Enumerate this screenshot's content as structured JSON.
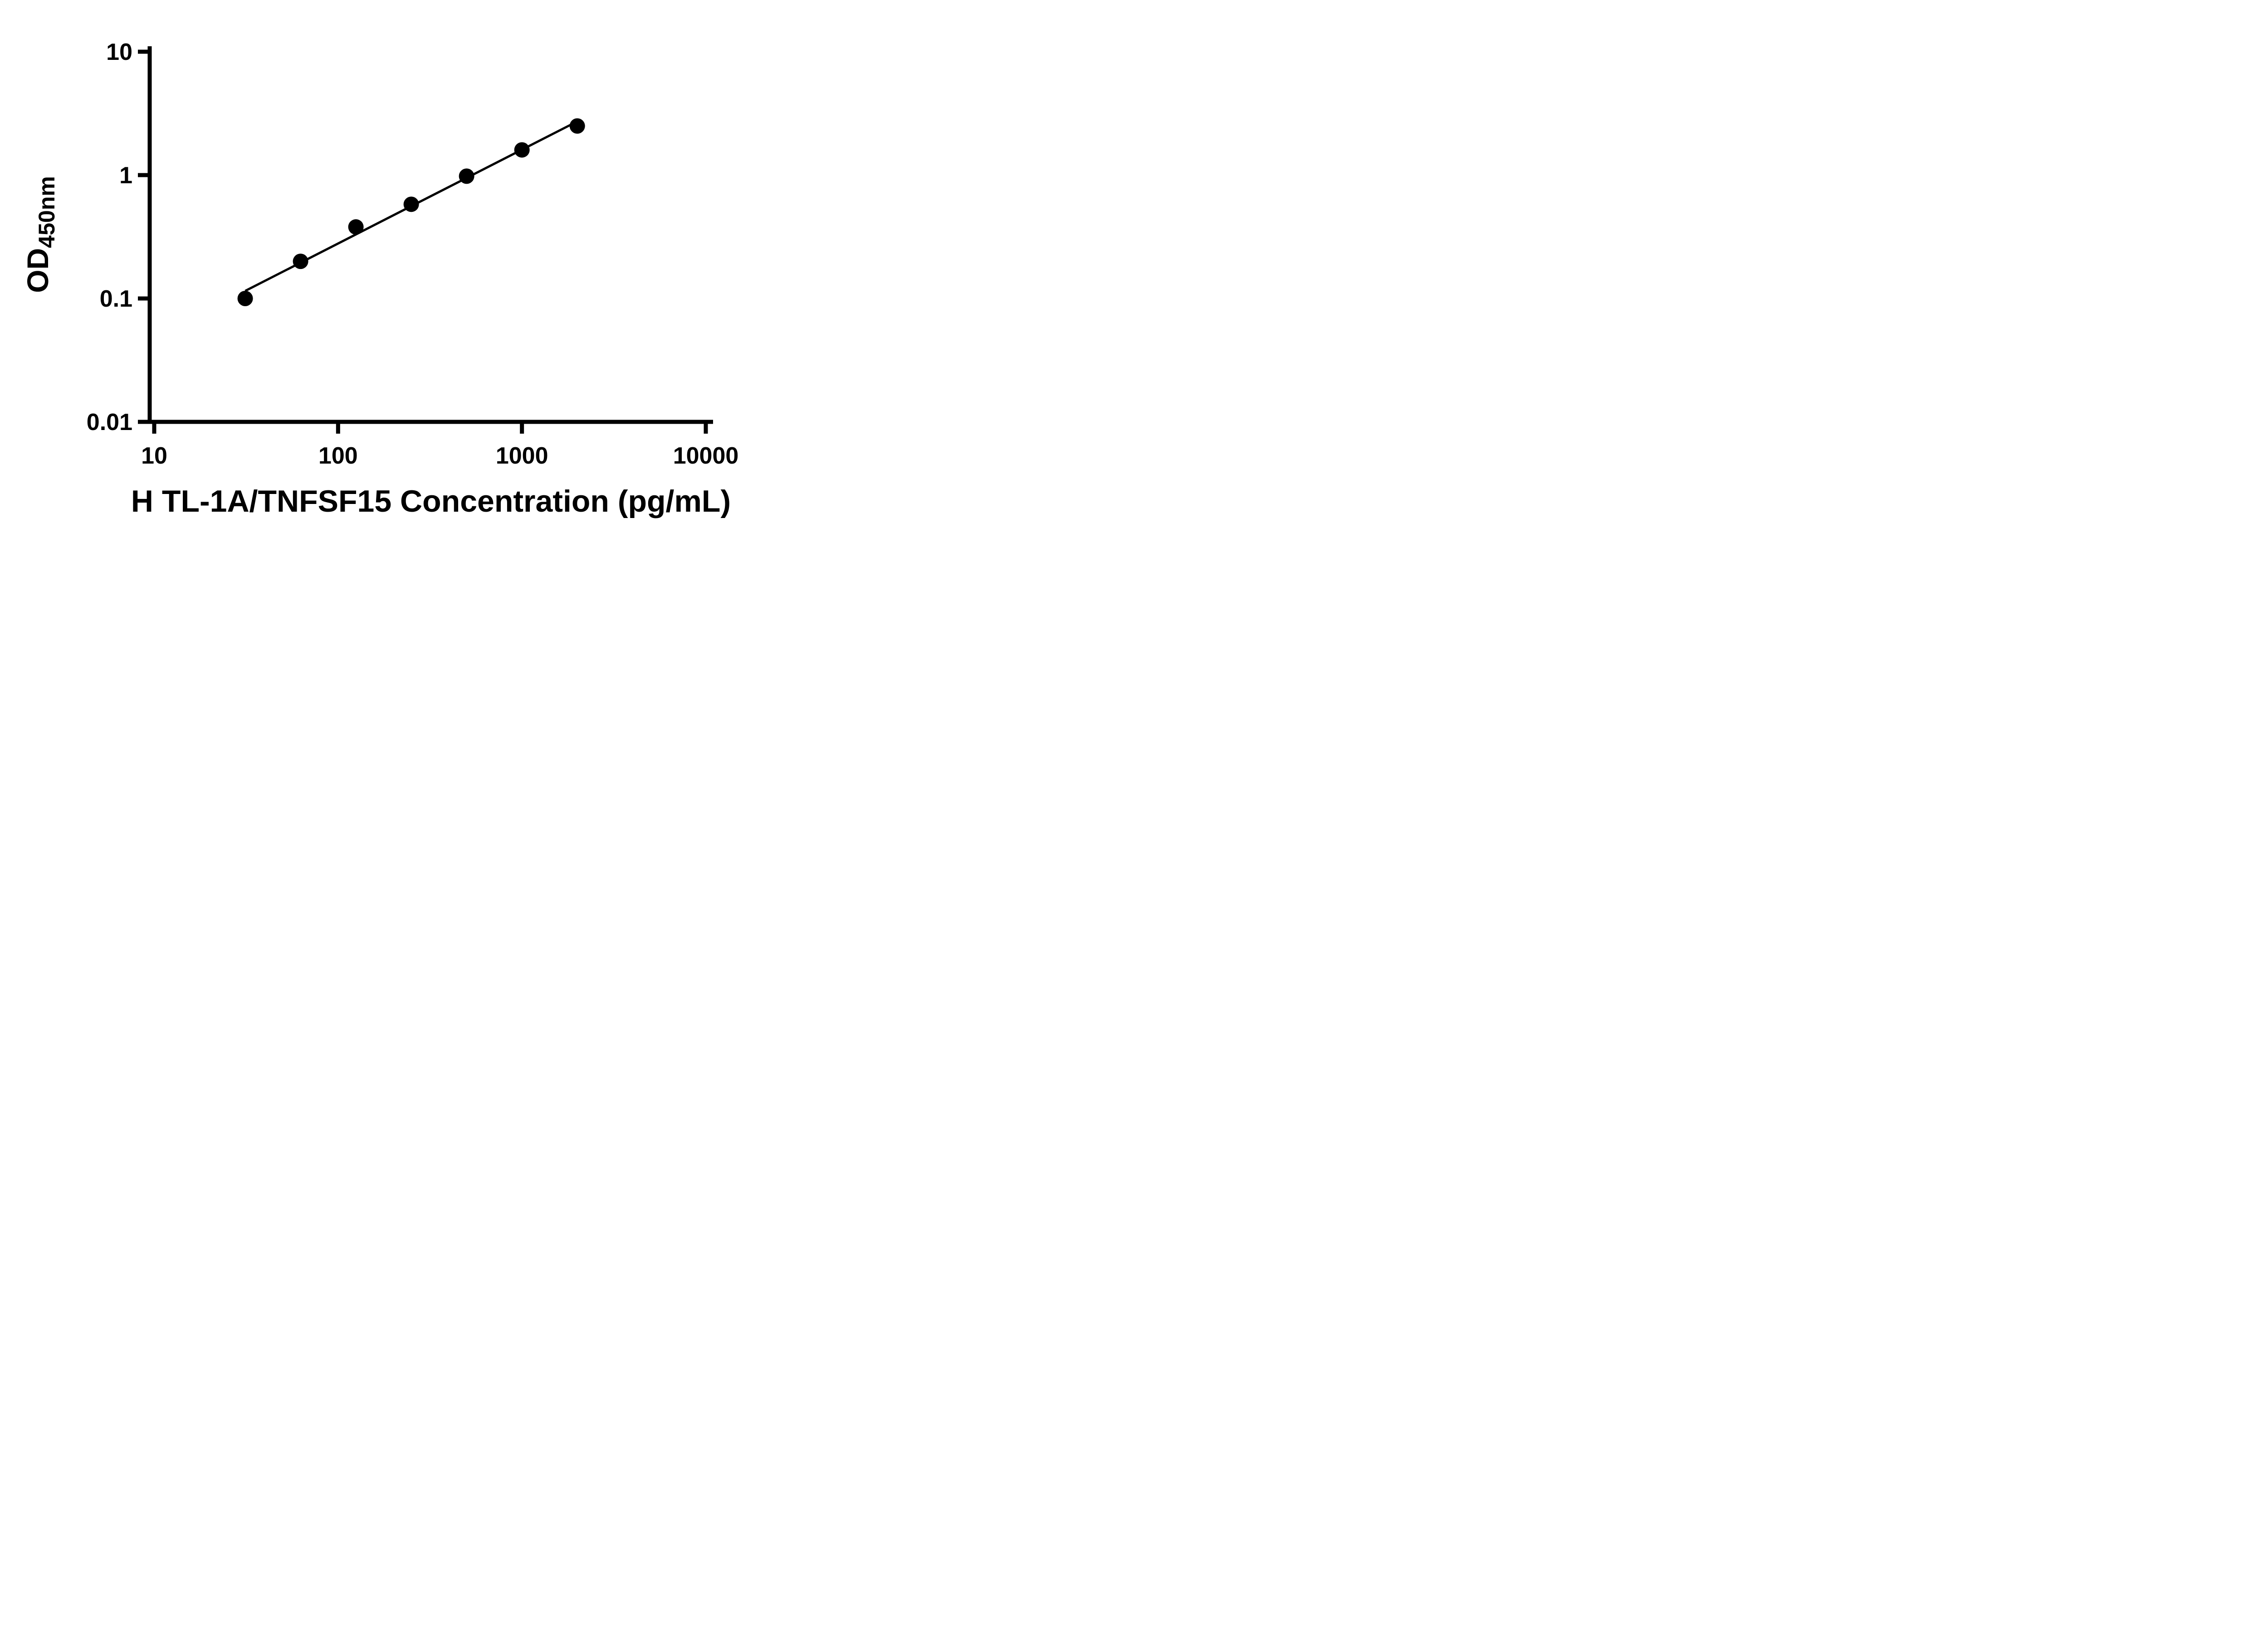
{
  "figure": {
    "background_color": "#ffffff",
    "foreground_color": "#000000"
  },
  "chart_data": {
    "type": "scatter",
    "title": "",
    "xlabel": "H TL-1A/TNFSF15 Concentration (pg/mL)",
    "ylabel_main": "OD",
    "ylabel_subscript": "450nm",
    "x_scale": "log10",
    "y_scale": "log10",
    "xlim": [
      10,
      10000
    ],
    "ylim": [
      0.01,
      10
    ],
    "x_ticks": [
      10,
      100,
      1000,
      10000
    ],
    "x_tick_labels": [
      "10",
      "100",
      "1000",
      "10000"
    ],
    "y_ticks": [
      10,
      1,
      0.1,
      0.01
    ],
    "y_tick_labels": [
      "10",
      "1",
      "0.1",
      "0.01"
    ],
    "grid": false,
    "legend": false,
    "series": [
      {
        "x": [
          31.25,
          62.5,
          125,
          250,
          500,
          1000,
          2000
        ],
        "y": [
          0.1,
          0.2,
          0.38,
          0.58,
          0.98,
          1.6,
          2.5
        ],
        "marker": "circle",
        "marker_color": "#000000",
        "line": "log-log-linear-fit",
        "line_color": "#000000"
      }
    ]
  }
}
